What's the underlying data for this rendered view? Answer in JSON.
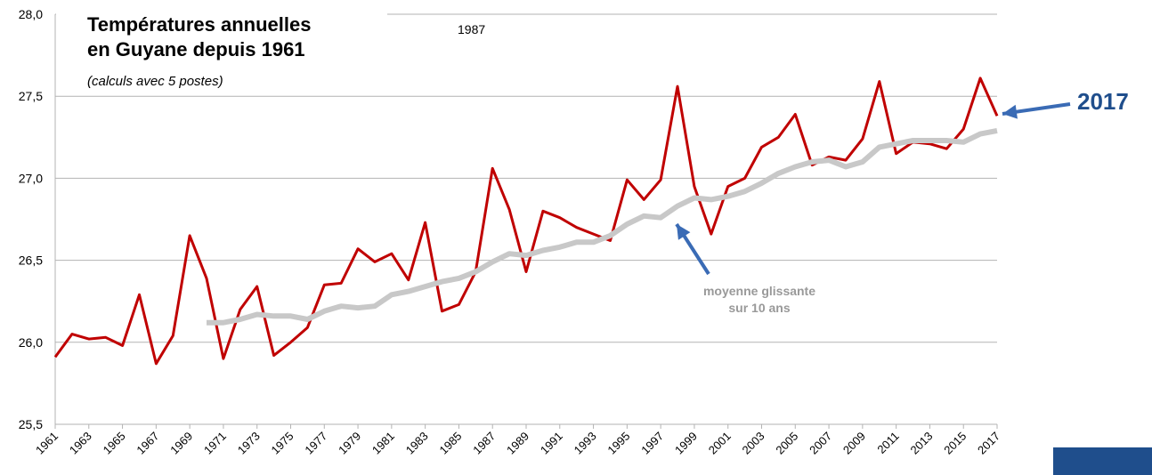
{
  "chart_data": {
    "type": "line",
    "title": [
      "Températures annuelles",
      "en Guyane depuis 1961"
    ],
    "subtitle": "(calculs avec 5 postes)",
    "annotations": [
      {
        "text": [
          "1987"
        ]
      },
      {
        "text": [
          "2017"
        ],
        "color": "#1f4e8c"
      },
      {
        "text": [
          "moyenne glissante",
          "sur 10 ans"
        ],
        "color": "#999999"
      }
    ],
    "x": [
      1961,
      1962,
      1963,
      1964,
      1965,
      1966,
      1967,
      1968,
      1969,
      1970,
      1971,
      1972,
      1973,
      1974,
      1975,
      1976,
      1977,
      1978,
      1979,
      1980,
      1981,
      1982,
      1983,
      1984,
      1985,
      1986,
      1987,
      1988,
      1989,
      1990,
      1991,
      1992,
      1993,
      1994,
      1995,
      1996,
      1997,
      1998,
      1999,
      2000,
      2001,
      2002,
      2003,
      2004,
      2005,
      2006,
      2007,
      2008,
      2009,
      2010,
      2011,
      2012,
      2013,
      2014,
      2015,
      2016,
      2017
    ],
    "series": [
      {
        "color": "#c00000",
        "width": 3,
        "values": [
          25.91,
          26.05,
          26.02,
          26.03,
          25.98,
          26.29,
          25.87,
          26.04,
          26.65,
          26.39,
          25.9,
          26.2,
          26.34,
          25.92,
          26.0,
          26.09,
          26.35,
          26.36,
          26.57,
          26.49,
          26.54,
          26.38,
          26.73,
          26.19,
          26.23,
          26.43,
          27.06,
          26.81,
          26.43,
          26.8,
          26.76,
          26.7,
          26.66,
          26.62,
          26.99,
          26.87,
          26.99,
          27.56,
          26.95,
          26.66,
          26.95,
          27.0,
          27.19,
          27.25,
          27.39,
          27.08,
          27.13,
          27.11,
          27.24,
          27.59,
          27.15,
          27.22,
          27.21,
          27.18,
          27.3,
          27.61,
          27.38
        ]
      },
      {
        "color": "#c8c8c8",
        "width": 6,
        "values": [
          null,
          null,
          null,
          null,
          null,
          null,
          null,
          null,
          null,
          26.12,
          26.12,
          26.14,
          26.17,
          26.16,
          26.16,
          26.14,
          26.19,
          26.22,
          26.21,
          26.22,
          26.29,
          26.31,
          26.34,
          26.37,
          26.39,
          26.43,
          26.49,
          26.54,
          26.53,
          26.56,
          26.58,
          26.61,
          26.61,
          26.65,
          26.72,
          26.77,
          26.76,
          26.83,
          26.88,
          26.87,
          26.89,
          26.92,
          26.97,
          27.03,
          27.07,
          27.1,
          27.11,
          27.07,
          27.1,
          27.19,
          27.21,
          27.23,
          27.23,
          27.23,
          27.22,
          27.27,
          27.29
        ]
      }
    ],
    "xlim": [
      1961,
      2017
    ],
    "xticks": [
      1961,
      1963,
      1965,
      1967,
      1969,
      1971,
      1973,
      1975,
      1977,
      1979,
      1981,
      1983,
      1985,
      1987,
      1989,
      1991,
      1993,
      1995,
      1997,
      1999,
      2001,
      2003,
      2005,
      2007,
      2009,
      2011,
      2013,
      2015,
      2017
    ],
    "ylim": [
      25.5,
      28.0
    ],
    "yticks": [
      {
        "value": 25.5,
        "label": "25,5"
      },
      {
        "value": 26.0,
        "label": "26,0"
      },
      {
        "value": 26.5,
        "label": "26,5"
      },
      {
        "value": 27.0,
        "label": "27,0"
      },
      {
        "value": 27.5,
        "label": "27,5"
      },
      {
        "value": 28.0,
        "label": "28,0"
      }
    ],
    "grid": true
  }
}
